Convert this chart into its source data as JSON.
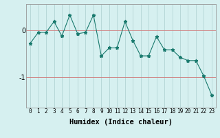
{
  "xlabel": "Humidex (Indice chaleur)",
  "ylabel": "",
  "x_values": [
    0,
    1,
    2,
    3,
    4,
    5,
    6,
    7,
    8,
    9,
    10,
    11,
    12,
    13,
    14,
    15,
    16,
    17,
    18,
    19,
    20,
    21,
    22,
    23
  ],
  "y_values": [
    -0.28,
    -0.05,
    -0.05,
    0.18,
    -0.13,
    0.32,
    -0.08,
    -0.05,
    0.32,
    -0.55,
    -0.38,
    -0.38,
    0.18,
    -0.22,
    -0.55,
    -0.55,
    -0.14,
    -0.42,
    -0.42,
    -0.58,
    -0.65,
    -0.65,
    -0.98,
    -1.38
  ],
  "line_color": "#1a7a6e",
  "marker_color": "#1a7a6e",
  "bg_color": "#d6f0f0",
  "grid_color": "#b8d8d8",
  "ytick_values": [
    0,
    -1
  ],
  "ytick_labels": [
    "0",
    "-1"
  ],
  "ylim": [
    -1.65,
    0.55
  ],
  "xlim": [
    -0.5,
    23.5
  ],
  "xlabel_fontsize": 7.5,
  "tick_fontsize": 5.5,
  "ytick_fontsize": 7
}
